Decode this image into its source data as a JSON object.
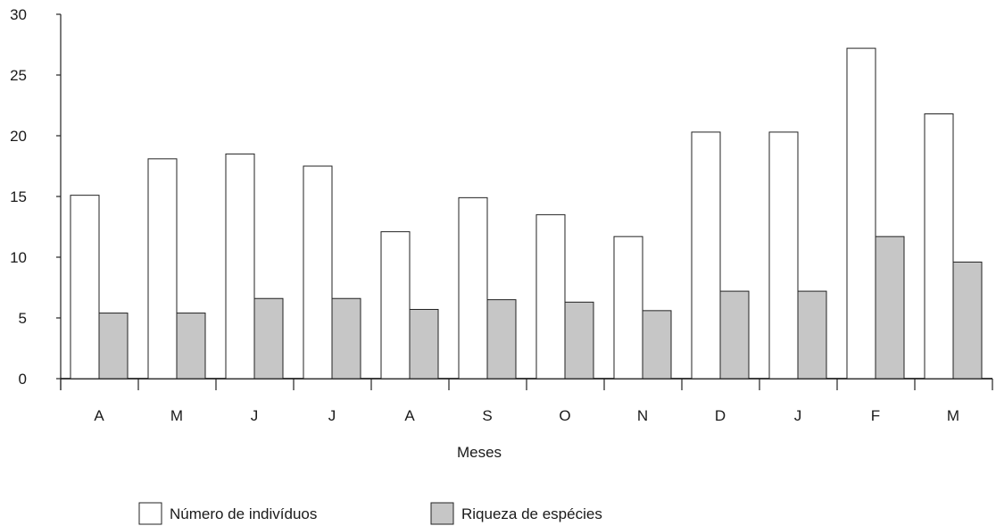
{
  "chart_data": {
    "type": "bar",
    "title": "",
    "xlabel": "Meses",
    "ylabel": "",
    "ylim": [
      0,
      30
    ],
    "yticks": [
      0,
      5,
      10,
      15,
      20,
      25,
      30
    ],
    "categories": [
      "A",
      "M",
      "J",
      "J",
      "A",
      "S",
      "O",
      "N",
      "D",
      "J",
      "F",
      "M"
    ],
    "series": [
      {
        "name": "Número de indivíduos",
        "color": "#ffffff",
        "values": [
          15.1,
          18.1,
          18.5,
          17.5,
          12.1,
          14.9,
          13.5,
          11.7,
          20.3,
          20.3,
          27.2,
          21.8
        ]
      },
      {
        "name": "Riqueza de espécies",
        "color": "#c6c6c6",
        "values": [
          5.4,
          5.4,
          6.6,
          6.6,
          5.7,
          6.5,
          6.3,
          5.6,
          7.2,
          7.2,
          11.7,
          9.6
        ]
      }
    ],
    "grid": false,
    "legend_position": "bottom"
  }
}
